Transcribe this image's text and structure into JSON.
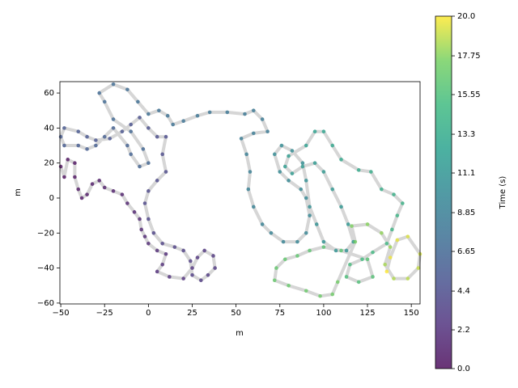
{
  "chart_data": {
    "type": "scatter",
    "xlabel": "m",
    "ylabel": "m",
    "colorbar_label": "Time (s)",
    "xlim": [
      -50.5,
      155
    ],
    "ylim": [
      -60.5,
      66.5
    ],
    "xticks": [
      {
        "value": -50,
        "label": "−50"
      },
      {
        "value": -25,
        "label": "−25"
      },
      0,
      25,
      50,
      75,
      100,
      125,
      150
    ],
    "yticks": [
      {
        "value": -60,
        "label": "−60"
      },
      {
        "value": -40,
        "label": "−40"
      },
      {
        "value": -20,
        "label": "−20"
      },
      0,
      20,
      40,
      60
    ],
    "clim": [
      0,
      20
    ],
    "cticks": [
      {
        "value": 0,
        "label": "0.0"
      },
      2.2,
      4.4,
      6.65,
      8.85,
      11.1,
      13.3,
      15.55,
      17.75,
      {
        "value": 20,
        "label": "20.0"
      }
    ],
    "colormap": "viridis",
    "line_color": "#cccccc",
    "x": [
      -50,
      -48,
      -46,
      -42,
      -42,
      -40,
      -38,
      -35,
      -32,
      -28,
      -25,
      -20,
      -15,
      -12,
      -8,
      -5,
      -4,
      -2,
      0,
      5,
      10,
      8,
      5,
      12,
      20,
      25,
      28,
      32,
      37,
      38,
      34,
      30,
      25,
      24,
      20,
      15,
      8,
      3,
      0,
      -2,
      0,
      5,
      10,
      8,
      10,
      5,
      0,
      -5,
      -10,
      -15,
      -22,
      -30,
      -35,
      -40,
      -48,
      -50,
      -48,
      -40,
      -35,
      -30,
      -25,
      -20,
      -12,
      -10,
      -5,
      0,
      -3,
      -10,
      -20,
      -25,
      -28,
      -20,
      -12,
      -6,
      0,
      6,
      11,
      14,
      20,
      28,
      35,
      45,
      55,
      60,
      65,
      68,
      60,
      53,
      56,
      58,
      57,
      60,
      65,
      70,
      77,
      85,
      90,
      92,
      90,
      87,
      80,
      75,
      72,
      76,
      82,
      88,
      90,
      92,
      96,
      100,
      107,
      113,
      117,
      114,
      110,
      105,
      100,
      95,
      88,
      82,
      78,
      80,
      90,
      95,
      100,
      105,
      110,
      120,
      127,
      133,
      140,
      145,
      142,
      139,
      136,
      128,
      122,
      115,
      113,
      120,
      128,
      125,
      110,
      100,
      92,
      85,
      78,
      73,
      72,
      80,
      90,
      98,
      105,
      108,
      118,
      116,
      125,
      133,
      138,
      135,
      140,
      148,
      154,
      155,
      148,
      142,
      138,
      136
    ],
    "y": [
      18,
      12,
      22,
      20,
      12,
      5,
      0,
      2,
      8,
      10,
      6,
      4,
      2,
      -3,
      -8,
      -12,
      -18,
      -22,
      -26,
      -30,
      -32,
      -38,
      -42,
      -45,
      -46,
      -40,
      -34,
      -30,
      -33,
      -40,
      -44,
      -47,
      -44,
      -36,
      -30,
      -28,
      -26,
      -20,
      -12,
      -3,
      4,
      10,
      15,
      25,
      35,
      35,
      40,
      46,
      42,
      38,
      34,
      33,
      35,
      38,
      40,
      35,
      30,
      30,
      28,
      30,
      35,
      40,
      30,
      25,
      18,
      20,
      28,
      38,
      45,
      55,
      60,
      65,
      62,
      55,
      48,
      50,
      47,
      42,
      44,
      47,
      49,
      49,
      48,
      50,
      45,
      38,
      37,
      34,
      25,
      15,
      5,
      -5,
      -15,
      -20,
      -25,
      -25,
      -20,
      -10,
      0,
      5,
      10,
      15,
      25,
      30,
      27,
      20,
      10,
      -5,
      -15,
      -25,
      -30,
      -30,
      -25,
      -15,
      -5,
      5,
      15,
      20,
      18,
      14,
      18,
      24,
      30,
      38,
      38,
      30,
      22,
      16,
      15,
      5,
      2,
      -3,
      -10,
      -18,
      -26,
      -31,
      -35,
      -38,
      -45,
      -48,
      -45,
      -35,
      -30,
      -28,
      -30,
      -33,
      -35,
      -40,
      -47,
      -50,
      -53,
      -56,
      -55,
      -48,
      -25,
      -16,
      -15,
      -20,
      -28,
      -38,
      -46,
      -46,
      -40,
      -32,
      -22,
      -24,
      -34,
      -42
    ],
    "c": [
      0.0,
      0.1,
      0.2,
      0.3,
      0.4,
      0.5,
      0.6,
      0.7,
      0.8,
      0.9,
      1.0,
      1.1,
      1.2,
      1.3,
      1.4,
      1.5,
      1.6,
      1.7,
      1.8,
      1.9,
      2.0,
      2.1,
      2.2,
      2.3,
      2.4,
      2.5,
      2.6,
      2.7,
      2.8,
      2.9,
      3.0,
      3.1,
      3.2,
      3.3,
      3.4,
      3.5,
      3.6,
      3.7,
      3.8,
      3.9,
      4.0,
      4.1,
      4.2,
      4.3,
      4.4,
      4.5,
      4.6,
      4.7,
      4.8,
      4.9,
      5.0,
      5.1,
      5.2,
      5.3,
      5.4,
      5.5,
      5.6,
      5.7,
      5.8,
      5.9,
      6.0,
      6.1,
      6.2,
      6.3,
      6.4,
      6.5,
      6.6,
      6.7,
      6.8,
      6.9,
      7.0,
      7.1,
      7.2,
      7.3,
      7.4,
      7.5,
      7.6,
      7.7,
      7.8,
      7.9,
      8.0,
      8.1,
      8.2,
      8.3,
      8.4,
      8.5,
      8.6,
      8.7,
      8.8,
      8.9,
      9.0,
      9.1,
      9.2,
      9.3,
      9.4,
      9.5,
      9.6,
      9.7,
      9.8,
      9.9,
      10.0,
      10.1,
      10.2,
      10.3,
      10.4,
      10.5,
      10.6,
      10.7,
      10.8,
      10.9,
      11.0,
      11.1,
      11.2,
      11.3,
      11.4,
      11.5,
      11.6,
      11.7,
      11.8,
      11.9,
      12.0,
      12.1,
      12.3,
      12.5,
      12.7,
      12.9,
      13.1,
      13.3,
      13.5,
      13.7,
      13.9,
      14.1,
      14.3,
      14.5,
      14.7,
      14.9,
      15.1,
      15.3,
      15.5,
      15.7,
      15.9,
      16.0,
      16.1,
      16.2,
      16.3,
      16.4,
      16.5,
      16.6,
      16.7,
      16.8,
      16.9,
      17.0,
      17.1,
      17.2,
      17.4,
      17.6,
      17.8,
      18.0,
      18.2,
      18.4,
      18.6,
      18.8,
      19.0,
      19.2,
      19.4,
      19.6,
      19.8,
      20.0
    ]
  }
}
